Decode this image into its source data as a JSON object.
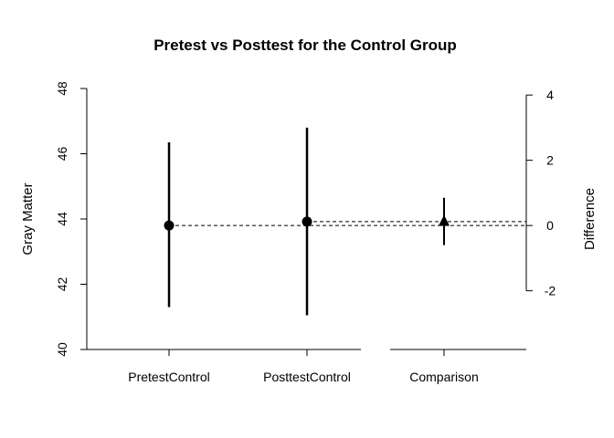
{
  "chart_data": {
    "type": "scatter",
    "title": "Pretest vs Posttest for the Control Group",
    "ylabel": "Gray Matter",
    "ylabel_right": "Difference",
    "ylim": [
      40,
      48
    ],
    "yticks": [
      40,
      42,
      44,
      46,
      48
    ],
    "ylim_right": [
      -3.8,
      4.2
    ],
    "yticks_right": [
      -2,
      0,
      2,
      4
    ],
    "ytick_labels_right": [
      "-2",
      "0",
      "2",
      "4"
    ],
    "categories": [
      "PretestControl",
      "PosttestControl",
      "Comparison"
    ],
    "points": [
      {
        "category": "PretestControl",
        "mean": 43.8,
        "lower": 41.3,
        "upper": 46.35,
        "marker": "circle"
      },
      {
        "category": "PosttestControl",
        "mean": 43.92,
        "lower": 41.05,
        "upper": 46.8,
        "marker": "circle"
      }
    ],
    "difference": {
      "category": "Comparison",
      "mean": 0.13,
      "lower": -0.6,
      "upper": 0.85,
      "marker": "triangle"
    },
    "reference_lines": [
      {
        "value": 43.8,
        "style": "dashed"
      },
      {
        "value": 43.92,
        "style": "dashed"
      }
    ],
    "grid": false,
    "legend": "none"
  }
}
